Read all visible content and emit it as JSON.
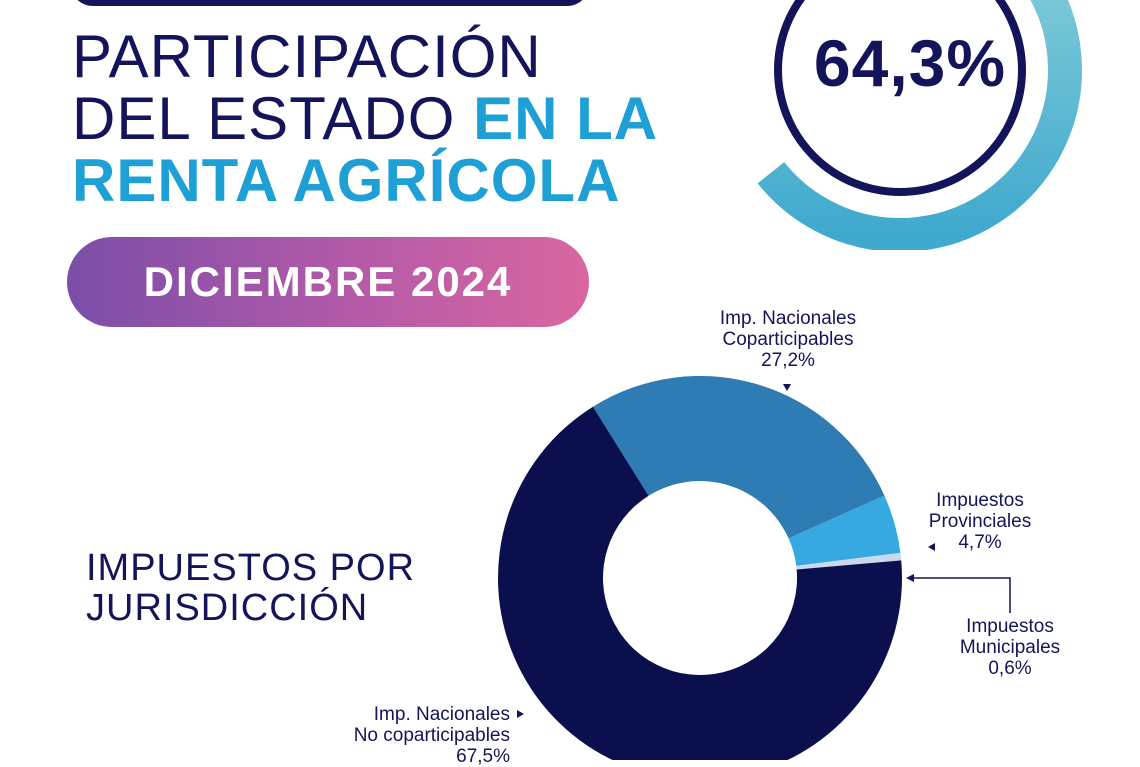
{
  "header": {
    "title_line1": "PARTICIPACIÓN",
    "title_line2_plain": "DEL ESTADO",
    "title_line2_accent": "EN LA",
    "title_line3": "RENTA AGRÍCOLA"
  },
  "badge": {
    "date": "DICIEMBRE 2024"
  },
  "gauge": {
    "value_label": "64,3%",
    "value": 64.3
  },
  "section": {
    "title_line1": "IMPUESTOS POR",
    "title_line2": "JURISDICCIÓN"
  },
  "colors": {
    "navy": "#14145a",
    "blue_accent": "#1ea0d6",
    "teal": "#66c3d4",
    "slice_nac_cop": "#2f7bb4",
    "slice_prov": "#36a9e0",
    "slice_mun": "#c9d8ea",
    "slice_nonc": "#0b0f4d"
  },
  "chart_data": {
    "type": "pie",
    "title": "IMPUESTOS POR JURISDICCIÓN",
    "series": [
      {
        "name": "Imp. Nacionales Coparticipables",
        "value": 27.2,
        "label_line1": "Imp. Nacionales",
        "label_line2": "Coparticipables",
        "value_label": "27,2%"
      },
      {
        "name": "Impuestos Provinciales",
        "value": 4.7,
        "label_line1": "Impuestos",
        "label_line2": "Provinciales",
        "value_label": "4,7%"
      },
      {
        "name": "Impuestos Municipales",
        "value": 0.6,
        "label_line1": "Impuestos",
        "label_line2": "Municipales",
        "value_label": "0,6%"
      },
      {
        "name": "Imp. Nacionales No coparticipables",
        "value": 67.5,
        "label_line1": "Imp. Nacionales",
        "label_line2": "No coparticipables",
        "value_label": "67,5%"
      }
    ]
  }
}
